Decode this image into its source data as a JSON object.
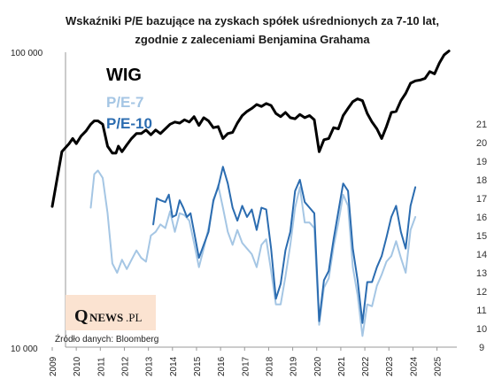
{
  "chart_data": {
    "type": "line",
    "title_line1": "Wskaźniki P/E bazujące na zyskach spółek uśrednionych za 7-10 lat,",
    "title_line2": "zgodnie z zaleceniami Benjamina Grahama",
    "left_axis": {
      "scale": "log",
      "range": [
        10000,
        100000
      ],
      "tick_labels": [
        "100 000",
        "10 000"
      ]
    },
    "right_axis": {
      "range": [
        9,
        21
      ],
      "ticks": [
        9,
        10,
        11,
        12,
        13,
        14,
        15,
        16,
        17,
        18,
        19,
        20,
        21
      ]
    },
    "x_axis": {
      "range": [
        2009,
        2025.9
      ],
      "tick_labels": [
        "2009",
        "2010",
        "2011",
        "2012",
        "2013",
        "2014",
        "2015",
        "2016",
        "2017",
        "2018",
        "2019",
        "2020",
        "2021",
        "2022",
        "2023",
        "2024",
        "2025"
      ]
    },
    "series": [
      {
        "name": "WIG",
        "axis": "left",
        "color": "#000000",
        "points": [
          [
            2009.0,
            30000
          ],
          [
            2009.4,
            46000
          ],
          [
            2009.7,
            49000
          ],
          [
            2009.85,
            51000
          ],
          [
            2010.0,
            49000
          ],
          [
            2010.2,
            52000
          ],
          [
            2010.4,
            54000
          ],
          [
            2010.6,
            57000
          ],
          [
            2010.75,
            58500
          ],
          [
            2010.9,
            58500
          ],
          [
            2011.1,
            57000
          ],
          [
            2011.3,
            48000
          ],
          [
            2011.5,
            45500
          ],
          [
            2011.65,
            45500
          ],
          [
            2011.75,
            48000
          ],
          [
            2011.9,
            46000
          ],
          [
            2012.1,
            48500
          ],
          [
            2012.3,
            51000
          ],
          [
            2012.5,
            53000
          ],
          [
            2012.7,
            53000
          ],
          [
            2012.9,
            54500
          ],
          [
            2013.1,
            52500
          ],
          [
            2013.3,
            54500
          ],
          [
            2013.5,
            53000
          ],
          [
            2013.7,
            55000
          ],
          [
            2013.9,
            57000
          ],
          [
            2014.1,
            58000
          ],
          [
            2014.3,
            57500
          ],
          [
            2014.5,
            59000
          ],
          [
            2014.7,
            58000
          ],
          [
            2014.9,
            60500
          ],
          [
            2015.1,
            56500
          ],
          [
            2015.3,
            60000
          ],
          [
            2015.5,
            58500
          ],
          [
            2015.7,
            55500
          ],
          [
            2015.9,
            56000
          ],
          [
            2016.1,
            51000
          ],
          [
            2016.3,
            53000
          ],
          [
            2016.5,
            53500
          ],
          [
            2016.7,
            57500
          ],
          [
            2016.9,
            61000
          ],
          [
            2017.1,
            63000
          ],
          [
            2017.3,
            64500
          ],
          [
            2017.5,
            66500
          ],
          [
            2017.7,
            65500
          ],
          [
            2017.9,
            67000
          ],
          [
            2018.1,
            66000
          ],
          [
            2018.3,
            62000
          ],
          [
            2018.5,
            60500
          ],
          [
            2018.7,
            62500
          ],
          [
            2018.9,
            60000
          ],
          [
            2019.1,
            59500
          ],
          [
            2019.3,
            61500
          ],
          [
            2019.5,
            60000
          ],
          [
            2019.7,
            61000
          ],
          [
            2019.9,
            59000
          ],
          [
            2020.1,
            46000
          ],
          [
            2020.3,
            50500
          ],
          [
            2020.5,
            51000
          ],
          [
            2020.7,
            55500
          ],
          [
            2020.9,
            55000
          ],
          [
            2021.1,
            61000
          ],
          [
            2021.3,
            64500
          ],
          [
            2021.5,
            68000
          ],
          [
            2021.7,
            69500
          ],
          [
            2021.9,
            68500
          ],
          [
            2022.1,
            62000
          ],
          [
            2022.3,
            58000
          ],
          [
            2022.5,
            55000
          ],
          [
            2022.7,
            51000
          ],
          [
            2022.9,
            56000
          ],
          [
            2023.1,
            62500
          ],
          [
            2023.3,
            63000
          ],
          [
            2023.5,
            68500
          ],
          [
            2023.7,
            72500
          ],
          [
            2023.9,
            78500
          ],
          [
            2024.1,
            80000
          ],
          [
            2024.3,
            80500
          ],
          [
            2024.5,
            81500
          ],
          [
            2024.7,
            86000
          ],
          [
            2024.9,
            84500
          ],
          [
            2025.1,
            92000
          ],
          [
            2025.3,
            98000
          ],
          [
            2025.5,
            101000
          ]
        ]
      },
      {
        "name": "P/E-7",
        "axis": "right",
        "color": "#a5c6e4",
        "points": [
          [
            2010.6,
            16.5
          ],
          [
            2010.75,
            18.3
          ],
          [
            2010.9,
            18.5
          ],
          [
            2011.1,
            18.1
          ],
          [
            2011.3,
            16.2
          ],
          [
            2011.5,
            13.5
          ],
          [
            2011.7,
            13.0
          ],
          [
            2011.9,
            13.7
          ],
          [
            2012.1,
            13.2
          ],
          [
            2012.3,
            13.7
          ],
          [
            2012.5,
            14.2
          ],
          [
            2012.7,
            13.8
          ],
          [
            2012.9,
            13.6
          ],
          [
            2013.1,
            15.0
          ],
          [
            2013.3,
            15.2
          ],
          [
            2013.5,
            15.6
          ],
          [
            2013.7,
            15.4
          ],
          [
            2013.9,
            16.3
          ],
          [
            2014.1,
            15.2
          ],
          [
            2014.3,
            16.2
          ],
          [
            2014.5,
            16.1
          ],
          [
            2014.7,
            15.8
          ],
          [
            2014.9,
            14.6
          ],
          [
            2015.1,
            13.3
          ],
          [
            2015.3,
            14.3
          ],
          [
            2015.5,
            15.4
          ],
          [
            2015.7,
            16.8
          ],
          [
            2015.9,
            17.7
          ],
          [
            2016.1,
            16.5
          ],
          [
            2016.3,
            15.2
          ],
          [
            2016.5,
            14.5
          ],
          [
            2016.7,
            15.3
          ],
          [
            2016.9,
            14.6
          ],
          [
            2017.1,
            14.3
          ],
          [
            2017.3,
            14.0
          ],
          [
            2017.5,
            13.3
          ],
          [
            2017.7,
            14.5
          ],
          [
            2017.9,
            14.8
          ],
          [
            2018.1,
            13.1
          ],
          [
            2018.3,
            11.3
          ],
          [
            2018.5,
            11.3
          ],
          [
            2018.7,
            12.8
          ],
          [
            2018.9,
            14.5
          ],
          [
            2019.1,
            16.5
          ],
          [
            2019.3,
            17.6
          ],
          [
            2019.5,
            15.7
          ],
          [
            2019.7,
            15.7
          ],
          [
            2019.9,
            15.4
          ],
          [
            2020.1,
            10.2
          ],
          [
            2020.3,
            12.2
          ],
          [
            2020.5,
            12.7
          ],
          [
            2020.7,
            14.4
          ],
          [
            2020.9,
            15.7
          ],
          [
            2021.1,
            17.2
          ],
          [
            2021.3,
            16.6
          ],
          [
            2021.5,
            13.3
          ],
          [
            2021.7,
            11.8
          ],
          [
            2021.9,
            9.6
          ],
          [
            2022.1,
            11.3
          ],
          [
            2022.3,
            11.2
          ],
          [
            2022.5,
            12.3
          ],
          [
            2022.7,
            12.9
          ],
          [
            2022.9,
            13.6
          ],
          [
            2023.1,
            13.9
          ],
          [
            2023.3,
            14.7
          ],
          [
            2023.5,
            13.8
          ],
          [
            2023.7,
            13.0
          ],
          [
            2023.9,
            15.3
          ],
          [
            2024.1,
            16.0
          ]
        ]
      },
      {
        "name": "P/E-10",
        "axis": "right",
        "color": "#2b6cb0",
        "points": [
          [
            2013.2,
            15.6
          ],
          [
            2013.35,
            17.0
          ],
          [
            2013.5,
            16.9
          ],
          [
            2013.7,
            16.8
          ],
          [
            2013.85,
            17.2
          ],
          [
            2014.0,
            16.0
          ],
          [
            2014.15,
            16.1
          ],
          [
            2014.3,
            16.9
          ],
          [
            2014.45,
            16.5
          ],
          [
            2014.6,
            16.0
          ],
          [
            2014.75,
            16.2
          ],
          [
            2014.9,
            15.2
          ],
          [
            2015.1,
            13.8
          ],
          [
            2015.3,
            14.5
          ],
          [
            2015.5,
            15.2
          ],
          [
            2015.7,
            16.9
          ],
          [
            2015.9,
            17.6
          ],
          [
            2016.1,
            18.7
          ],
          [
            2016.3,
            17.8
          ],
          [
            2016.5,
            16.5
          ],
          [
            2016.7,
            15.8
          ],
          [
            2016.9,
            16.6
          ],
          [
            2017.1,
            16.0
          ],
          [
            2017.3,
            16.4
          ],
          [
            2017.5,
            15.3
          ],
          [
            2017.7,
            16.5
          ],
          [
            2017.9,
            16.4
          ],
          [
            2018.1,
            14.3
          ],
          [
            2018.3,
            11.6
          ],
          [
            2018.5,
            12.4
          ],
          [
            2018.7,
            14.2
          ],
          [
            2018.9,
            15.2
          ],
          [
            2019.1,
            17.4
          ],
          [
            2019.3,
            18.0
          ],
          [
            2019.5,
            16.8
          ],
          [
            2019.7,
            16.5
          ],
          [
            2019.9,
            16.2
          ],
          [
            2020.1,
            10.4
          ],
          [
            2020.3,
            12.6
          ],
          [
            2020.5,
            13.1
          ],
          [
            2020.7,
            14.8
          ],
          [
            2020.9,
            16.3
          ],
          [
            2021.1,
            17.8
          ],
          [
            2021.3,
            17.4
          ],
          [
            2021.5,
            14.3
          ],
          [
            2021.7,
            12.6
          ],
          [
            2021.9,
            10.3
          ],
          [
            2022.1,
            12.5
          ],
          [
            2022.3,
            12.5
          ],
          [
            2022.5,
            13.3
          ],
          [
            2022.7,
            13.9
          ],
          [
            2022.9,
            14.9
          ],
          [
            2023.1,
            16.0
          ],
          [
            2023.3,
            16.6
          ],
          [
            2023.5,
            15.2
          ],
          [
            2023.7,
            14.3
          ],
          [
            2023.9,
            16.6
          ],
          [
            2024.1,
            17.6
          ]
        ]
      }
    ],
    "legend_placement": "top-left",
    "grid": false
  },
  "logo": {
    "q": "Q",
    "text": "NEWS",
    "suffix": ".PL"
  },
  "source": "Źródło danych: Bloomberg",
  "colors": {
    "wig": "#000000",
    "pe7": "#a5c6e4",
    "pe10": "#2b6cb0",
    "logo_bg": "#fbe3d1"
  }
}
